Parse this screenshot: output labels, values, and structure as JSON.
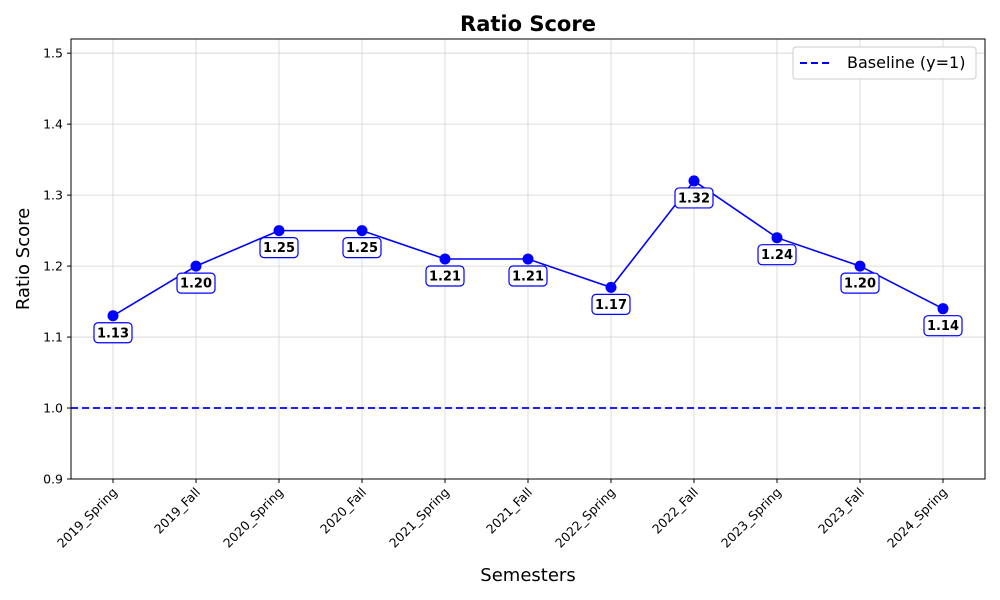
{
  "chart_data": {
    "type": "line",
    "title": "Ratio Score",
    "xlabel": "Semesters",
    "ylabel": "Ratio Score",
    "categories": [
      "2019_Spring",
      "2019_Fall",
      "2020_Spring",
      "2020_Fall",
      "2021_Spring",
      "2021_Fall",
      "2022_Spring",
      "2022_Fall",
      "2023_Spring",
      "2023_Fall",
      "2024_Spring"
    ],
    "series": [
      {
        "values": [
          1.13,
          1.2,
          1.25,
          1.25,
          1.21,
          1.21,
          1.17,
          1.32,
          1.24,
          1.2,
          1.14
        ],
        "color": "#0000ff",
        "data_labels": [
          "1.13",
          "1.20",
          "1.25",
          "1.25",
          "1.21",
          "1.21",
          "1.17",
          "1.32",
          "1.24",
          "1.20",
          "1.14"
        ]
      }
    ],
    "baseline": {
      "name": "Baseline (y=1)",
      "value": 1.0,
      "color": "#0000ff",
      "style": "dashed"
    },
    "ylim": [
      0.9,
      1.52
    ],
    "yticks": [
      "0.9",
      "1.0",
      "1.1",
      "1.2",
      "1.3",
      "1.4",
      "1.5"
    ],
    "grid": true,
    "legend_position": "top-right"
  }
}
